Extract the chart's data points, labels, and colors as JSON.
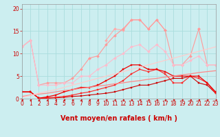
{
  "background_color": "#cceef0",
  "grid_color": "#aadddd",
  "x_values": [
    0,
    1,
    2,
    3,
    4,
    5,
    6,
    7,
    8,
    9,
    10,
    11,
    12,
    13,
    14,
    15,
    16,
    17,
    18,
    19,
    20,
    21,
    22,
    23
  ],
  "lines": [
    {
      "color": "#ffbbbb",
      "alpha": 1.0,
      "linewidth": 0.8,
      "marker": "D",
      "markersize": 2.0,
      "values": [
        11.5,
        13.0,
        null,
        null,
        null,
        null,
        null,
        null,
        9.0,
        null,
        null,
        null,
        null,
        null,
        null,
        null,
        null,
        null,
        null,
        null,
        null,
        null,
        null,
        null
      ]
    },
    {
      "color": "#ffaaaa",
      "alpha": 1.0,
      "linewidth": 0.8,
      "marker": "D",
      "markersize": 2.0,
      "values": [
        null,
        null,
        null,
        null,
        null,
        null,
        null,
        null,
        null,
        null,
        13.0,
        15.5,
        15.2,
        17.5,
        17.5,
        15.5,
        17.5,
        15.2,
        null,
        null,
        null,
        15.5,
        null,
        null
      ]
    },
    {
      "color": "#ff9999",
      "alpha": 1.0,
      "linewidth": 0.8,
      "marker": "D",
      "markersize": 2.0,
      "values": [
        11.5,
        13.0,
        3.0,
        3.5,
        3.5,
        3.5,
        4.5,
        6.5,
        9.0,
        9.5,
        12.0,
        14.0,
        15.5,
        17.5,
        17.5,
        15.5,
        17.5,
        15.2,
        7.5,
        7.5,
        9.5,
        15.5,
        7.5,
        7.5
      ]
    },
    {
      "color": "#ffbbcc",
      "alpha": 1.0,
      "linewidth": 0.8,
      "marker": "D",
      "markersize": 2.0,
      "values": [
        11.5,
        13.0,
        3.0,
        3.0,
        3.0,
        3.5,
        3.5,
        5.0,
        5.0,
        6.5,
        7.5,
        9.0,
        10.0,
        11.5,
        12.0,
        10.5,
        12.0,
        10.5,
        7.5,
        7.5,
        8.5,
        9.5,
        7.5,
        7.5
      ]
    },
    {
      "color": "#cc0000",
      "alpha": 1.0,
      "linewidth": 0.8,
      "marker": "s",
      "markersize": 2.0,
      "values": [
        1.5,
        1.5,
        0.1,
        0.1,
        0.2,
        0.3,
        0.5,
        0.6,
        0.8,
        1.0,
        1.2,
        1.5,
        2.0,
        2.5,
        3.0,
        3.0,
        3.5,
        4.0,
        4.5,
        4.5,
        5.0,
        3.5,
        3.0,
        1.2
      ]
    },
    {
      "color": "#ff2222",
      "alpha": 1.0,
      "linewidth": 0.8,
      "marker": "s",
      "markersize": 2.0,
      "values": [
        1.5,
        1.5,
        0.1,
        0.2,
        0.3,
        0.5,
        0.8,
        1.2,
        1.5,
        2.0,
        2.5,
        3.0,
        4.0,
        5.5,
        6.5,
        6.0,
        6.5,
        5.5,
        3.5,
        3.5,
        5.0,
        4.5,
        3.5,
        1.2
      ]
    },
    {
      "color": "#ee0000",
      "alpha": 1.0,
      "linewidth": 0.9,
      "marker": "s",
      "markersize": 2.0,
      "values": [
        1.5,
        1.5,
        0.1,
        0.4,
        0.8,
        1.5,
        2.0,
        2.5,
        2.5,
        3.0,
        4.0,
        5.0,
        6.5,
        7.5,
        7.5,
        6.5,
        6.5,
        6.0,
        5.0,
        5.0,
        5.0,
        5.0,
        3.5,
        1.5
      ]
    },
    {
      "color": "#ff8888",
      "alpha": 1.0,
      "linewidth": 0.9,
      "marker": null,
      "markersize": 0,
      "values": [
        0.5,
        0.8,
        1.0,
        1.2,
        1.5,
        1.8,
        2.0,
        2.3,
        2.5,
        2.8,
        3.0,
        3.3,
        3.5,
        3.8,
        4.0,
        4.3,
        4.5,
        4.8,
        5.0,
        5.3,
        5.5,
        5.8,
        6.0,
        6.2
      ]
    },
    {
      "color": "#ffcccc",
      "alpha": 1.0,
      "linewidth": 0.9,
      "marker": null,
      "markersize": 0,
      "values": [
        0.3,
        0.7,
        1.2,
        1.6,
        2.0,
        2.5,
        3.0,
        3.5,
        4.0,
        4.5,
        5.0,
        5.5,
        6.0,
        6.5,
        7.0,
        7.5,
        8.0,
        8.5,
        9.0,
        9.5,
        10.0,
        10.5,
        11.0,
        11.5
      ]
    }
  ],
  "xlabel": "Vent moyen/en rafales ( km/h )",
  "xlim": [
    0,
    23
  ],
  "ylim": [
    0,
    21
  ],
  "yticks": [
    0,
    5,
    10,
    15,
    20
  ],
  "xticks": [
    0,
    1,
    2,
    3,
    4,
    5,
    6,
    7,
    8,
    9,
    10,
    11,
    12,
    13,
    14,
    15,
    16,
    17,
    18,
    19,
    20,
    21,
    22,
    23
  ],
  "tick_color": "#cc0000",
  "xlabel_color": "#cc0000",
  "xlabel_fontsize": 7,
  "tick_fontsize": 5.5
}
